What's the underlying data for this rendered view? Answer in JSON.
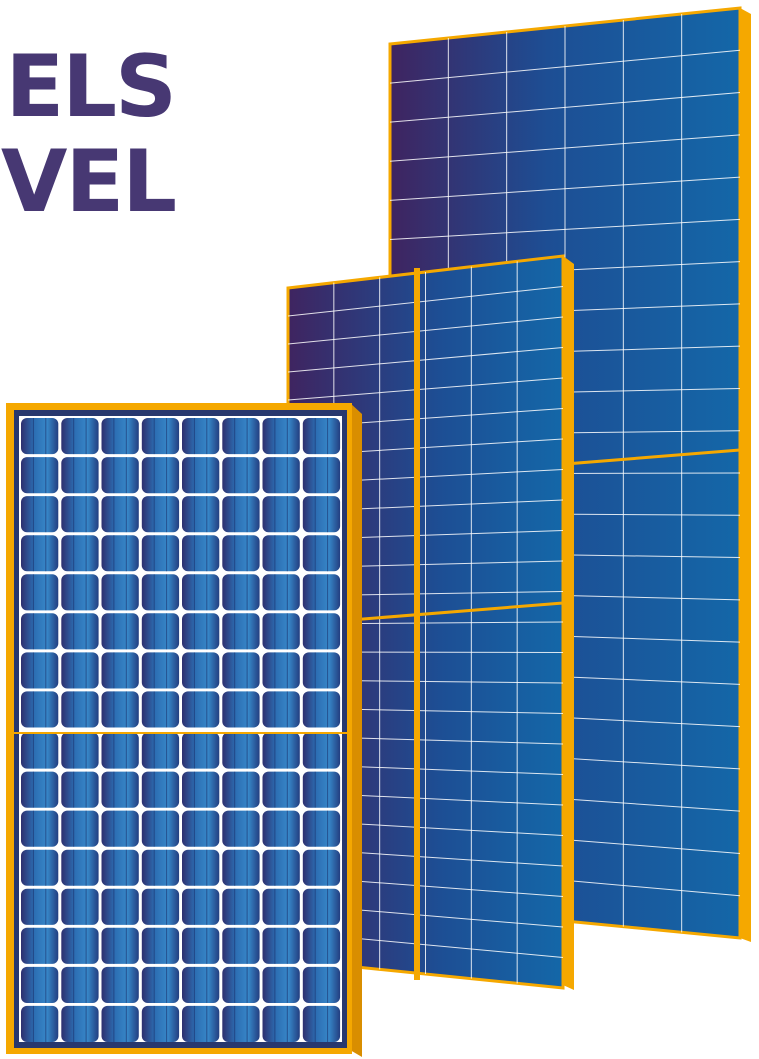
{
  "headline": {
    "line1": "ELS",
    "line2": "VEL",
    "color": "#473873"
  },
  "panels": [
    {
      "name": "tall-polycrystalline-panel",
      "cell_columns": 6,
      "cell_rows": 22,
      "split": "half-cut"
    },
    {
      "name": "medium-polycrystalline-panel",
      "cell_columns": 6,
      "cell_rows": 24,
      "split": "half-cut"
    },
    {
      "name": "monocrystalline-panel",
      "cell_columns": 8,
      "cell_rows": 16,
      "split": "half-cut"
    }
  ],
  "colors": {
    "frame": "#f5a800",
    "frame_dark": "#d98e00",
    "cell_blue": "#1467a8",
    "cell_purple": "#3f2460",
    "mono_blue": "#2b7dc0",
    "mono_dark": "#28386e"
  }
}
